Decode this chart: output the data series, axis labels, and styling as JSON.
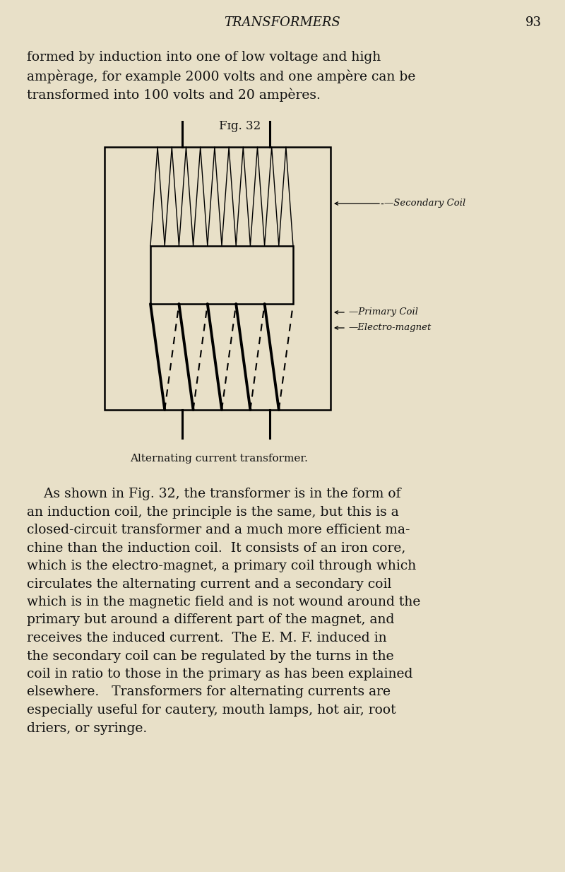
{
  "bg_color": "#e8e0c8",
  "page_title": "TRANSFORMERS",
  "page_number": "93",
  "header_fontsize": 13,
  "page_num_fontsize": 13,
  "intro_text_lines": [
    "formed by induction into one of low voltage and high",
    "ampèrage, for example 2000 volts and one ampère can be",
    "transformed into 100 volts and 20 ampères."
  ],
  "intro_fontsize": 13.5,
  "fig_caption": "Fɪg. 32",
  "fig_caption_fontsize": 12,
  "diagram_caption": "Alternating current transformer.",
  "diagram_caption_fontsize": 11,
  "label_secondary": "—Secondary Coil",
  "label_primary": "—Primary Coil",
  "label_electromagnet": "—Electro-magnet",
  "label_fontsize": 9.5,
  "body_lines": [
    "    As shown in Fig. 32, the transformer is in the form of",
    "an induction coil, the principle is the same, but this is a",
    "closed-circuit transformer and a much more efficient ma-",
    "chine than the induction coil.  It consists of an iron core,",
    "which is the electro-magnet, a primary coil through which",
    "circulates the alternating current and a secondary coil",
    "which is in the magnetic field and is not wound around the",
    "primary but around a different part of the magnet, and",
    "receives the induced current.  The E. M. F. induced in",
    "the secondary coil can be regulated by the turns in the",
    "coil in ratio to those in the primary as has been explained",
    "elsewhere.   Transformers for alternating currents are",
    "especially useful for cautery, mouth lamps, hot air, root",
    "driers, or syringe."
  ],
  "body_fontsize": 13.5
}
